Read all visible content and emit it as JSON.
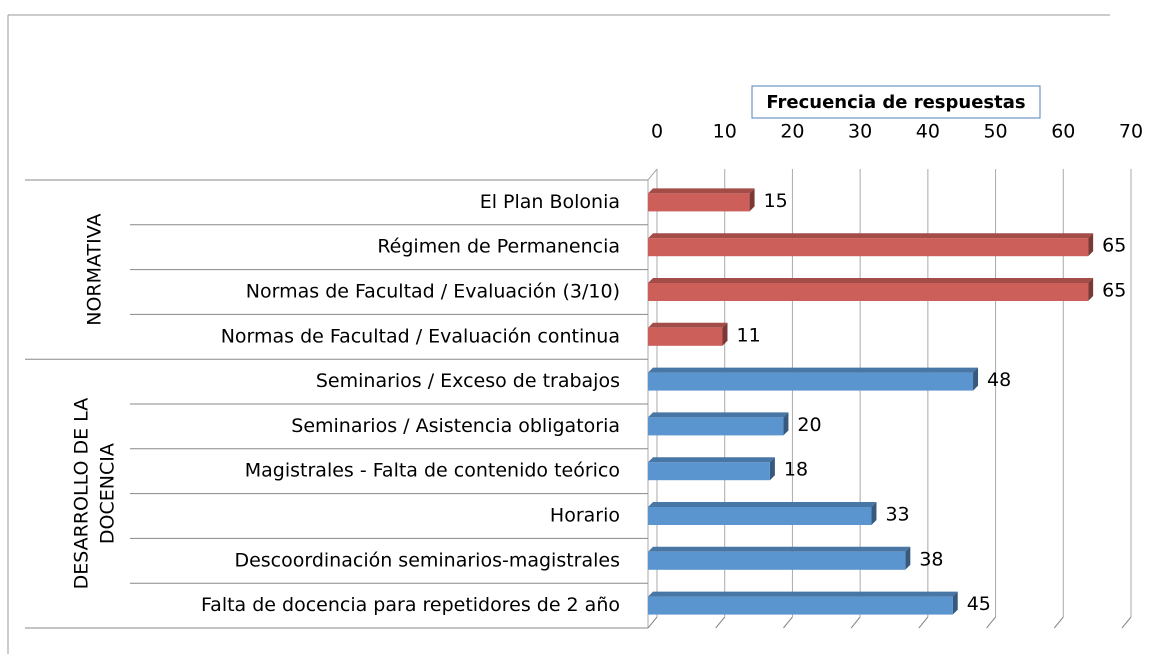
{
  "chart_data": {
    "type": "bar",
    "orientation": "horizontal",
    "series_name": "Frecuencia de respuestas",
    "xlim": [
      0,
      70
    ],
    "xticks": [
      0,
      10,
      20,
      30,
      40,
      50,
      60,
      70
    ],
    "grid": true,
    "groups": [
      {
        "label_lines": [
          "NORMATIVA"
        ],
        "color": "#cd5f5a",
        "categories": [
          "El Plan Bolonia",
          "Régimen de Permanencia",
          "Normas de Facultad / Evaluación (3/10)",
          "Normas de Facultad / Evaluación continua"
        ],
        "values": [
          15,
          65,
          65,
          11
        ]
      },
      {
        "label_lines": [
          "DESARROLLO DE LA",
          "DOCENCIA"
        ],
        "color": "#5a95d0",
        "categories": [
          "Seminarios / Exceso de trabajos",
          "Seminarios / Asistencia obligatoria",
          "Magistrales - Falta de contenido teórico",
          "Horario",
          "Descoordinación seminarios-magistrales",
          "Falta de docencia para repetidores de 2 año"
        ],
        "values": [
          48,
          20,
          18,
          33,
          38,
          45
        ]
      }
    ]
  }
}
